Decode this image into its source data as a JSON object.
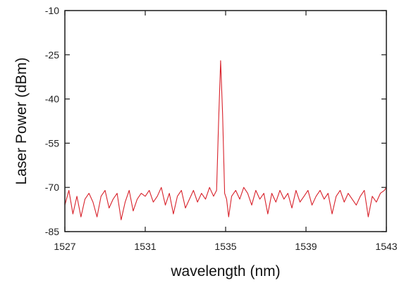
{
  "chart_data": {
    "type": "line",
    "xlabel": "wavelength (nm)",
    "ylabel": "Laser Power (dBm)",
    "xlim": [
      1527,
      1543
    ],
    "ylim": [
      -85,
      -10
    ],
    "x_ticks": [
      "1527",
      "1531",
      "1535",
      "1539",
      "1543"
    ],
    "y_ticks": [
      "-10",
      "-25",
      "-40",
      "-55",
      "-70",
      "-85"
    ],
    "grid": false,
    "legend": "none",
    "line_color": "#d8222b",
    "series": [
      {
        "x": [
          1527.0,
          1527.2,
          1527.4,
          1527.6,
          1527.8,
          1528.0,
          1528.2,
          1528.4,
          1528.6,
          1528.8,
          1529.0,
          1529.2,
          1529.4,
          1529.6,
          1529.8,
          1530.0,
          1530.2,
          1530.4,
          1530.6,
          1530.8,
          1531.0,
          1531.2,
          1531.4,
          1531.6,
          1531.8,
          1532.0,
          1532.2,
          1532.4,
          1532.6,
          1532.8,
          1533.0,
          1533.2,
          1533.4,
          1533.6,
          1533.8,
          1534.0,
          1534.2,
          1534.4,
          1534.55,
          1534.65,
          1534.75,
          1534.85,
          1534.95,
          1535.05,
          1535.15,
          1535.3,
          1535.5,
          1535.7,
          1535.9,
          1536.1,
          1536.3,
          1536.5,
          1536.7,
          1536.9,
          1537.1,
          1537.3,
          1537.5,
          1537.7,
          1537.9,
          1538.1,
          1538.3,
          1538.5,
          1538.7,
          1538.9,
          1539.1,
          1539.3,
          1539.5,
          1539.7,
          1539.9,
          1540.1,
          1540.3,
          1540.5,
          1540.7,
          1540.9,
          1541.1,
          1541.3,
          1541.5,
          1541.7,
          1541.9,
          1542.1,
          1542.3,
          1542.5,
          1542.7,
          1542.9,
          1543.0
        ],
        "y": [
          -76,
          -71,
          -79,
          -73,
          -80,
          -74,
          -72,
          -75,
          -80,
          -73,
          -71,
          -77,
          -74,
          -72,
          -81,
          -75,
          -71,
          -78,
          -74,
          -72,
          -73,
          -71,
          -75,
          -73,
          -70,
          -76,
          -72,
          -79,
          -73,
          -71,
          -77,
          -74,
          -71,
          -75,
          -72,
          -74,
          -70,
          -73,
          -71,
          -48,
          -27,
          -45,
          -72,
          -74,
          -80,
          -73,
          -71,
          -74,
          -70,
          -72,
          -76,
          -71,
          -74,
          -72,
          -79,
          -72,
          -75,
          -71,
          -74,
          -72,
          -77,
          -71,
          -75,
          -73,
          -71,
          -76,
          -73,
          -71,
          -74,
          -72,
          -79,
          -73,
          -71,
          -75,
          -72,
          -74,
          -76,
          -73,
          -71,
          -80,
          -73,
          -75,
          -72,
          -71,
          -70
        ]
      }
    ]
  }
}
